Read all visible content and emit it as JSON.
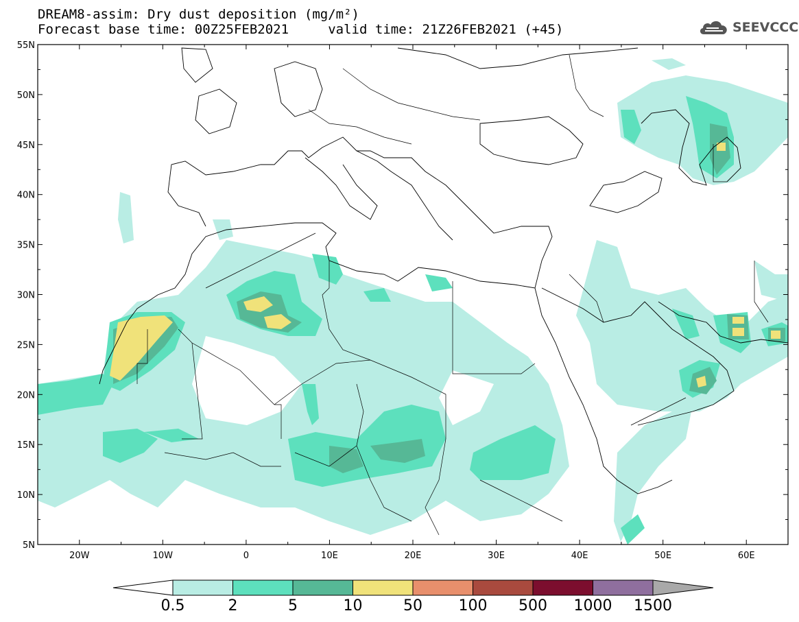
{
  "title_line1": "DREAM8-assim: Dry dust deposition (mg/m²)",
  "title_line2": "Forecast base time: 00Z25FEB2021     valid time: 21Z26FEB2021 (+45)",
  "logo_text": "SEEVCCC",
  "axes": {
    "lon_ticks": [
      "20W",
      "10W",
      "0",
      "10E",
      "20E",
      "30E",
      "40E",
      "50E",
      "60E"
    ],
    "lat_ticks": [
      "55N",
      "50N",
      "45N",
      "40N",
      "35N",
      "30N",
      "25N",
      "20N",
      "15N",
      "10N",
      "5N"
    ],
    "lon_range": [
      -25,
      65
    ],
    "lat_range": [
      5,
      55
    ]
  },
  "colorbar": {
    "labels": [
      "0.5",
      "2",
      "5",
      "10",
      "50",
      "100",
      "500",
      "1000",
      "1500"
    ],
    "colors": [
      "#b9ede4",
      "#5de0bd",
      "#56b896",
      "#f0e27a",
      "#e88f6c",
      "#a94a3e",
      "#7c0e2e",
      "#8f6f9e",
      "#a9a9a9"
    ],
    "under_color": "#ffffff"
  }
}
